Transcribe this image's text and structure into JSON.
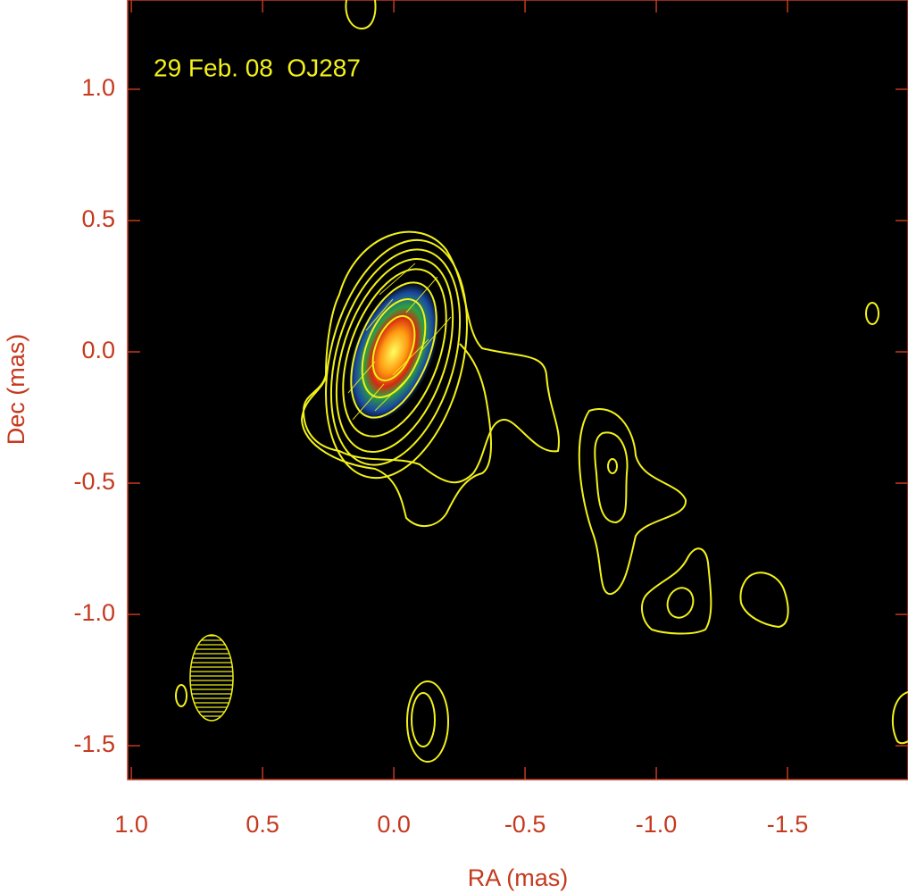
{
  "chart_data": {
    "type": "contour",
    "annotation": "29 Feb. 08  OJ287",
    "xlabel": "RA (mas)",
    "ylabel": "Dec (mas)",
    "xlim": [
      1.014,
      -1.959
    ],
    "ylim": [
      -1.629,
      1.34
    ],
    "xticks": [
      {
        "value": 1,
        "label": "1.0"
      },
      0.5,
      {
        "value": 0,
        "label": "0.0"
      },
      -0.5,
      {
        "value": -1,
        "label": "-1.0"
      },
      -1.5
    ],
    "yticks": [
      {
        "value": 1,
        "label": "1.0"
      },
      0.5,
      {
        "value": 0,
        "label": "0.0"
      },
      -0.5,
      {
        "value": -1,
        "label": "-1.0"
      },
      -1.5
    ]
  }
}
